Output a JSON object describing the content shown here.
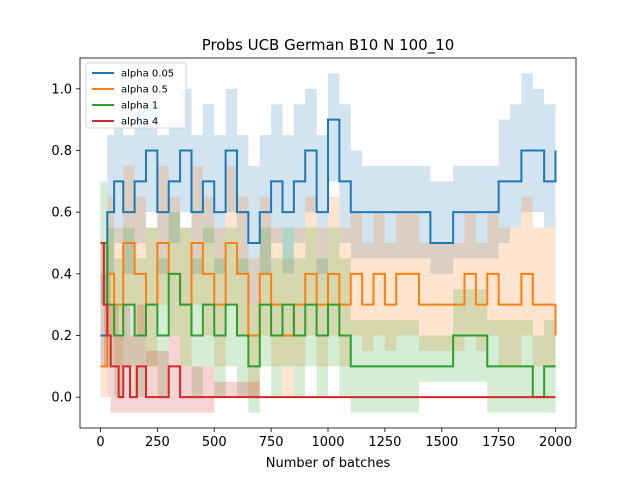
{
  "chart_data": {
    "type": "line",
    "title": "Probs UCB German B10 N 100_10",
    "xlabel": "Number of batches",
    "ylabel": "",
    "xlim": [
      -90,
      2090
    ],
    "ylim": [
      -0.1,
      1.1
    ],
    "x_ticks": [
      0,
      250,
      500,
      750,
      1000,
      1250,
      1500,
      1750,
      2000
    ],
    "y_ticks": [
      0.0,
      0.2,
      0.4,
      0.6,
      0.8,
      1.0
    ],
    "x_tick_labels": [
      "0",
      "250",
      "500",
      "750",
      "1000",
      "1250",
      "1500",
      "1750",
      "2000"
    ],
    "y_tick_labels": [
      "0.0",
      "0.2",
      "0.4",
      "0.6",
      "0.8",
      "1.0"
    ],
    "grid": false,
    "legend_position": "top-left",
    "series": [
      {
        "name": "alpha 0.05",
        "color": "#1f77b4",
        "x": [
          0,
          30,
          60,
          100,
          150,
          200,
          250,
          300,
          350,
          400,
          450,
          500,
          550,
          600,
          650,
          700,
          750,
          800,
          850,
          900,
          950,
          1000,
          1050,
          1100,
          1150,
          1200,
          1250,
          1300,
          1350,
          1400,
          1450,
          1500,
          1550,
          1600,
          1650,
          1700,
          1750,
          1800,
          1850,
          1900,
          1950,
          2000
        ],
        "values": [
          0.2,
          0.6,
          0.7,
          0.6,
          0.7,
          0.8,
          0.6,
          0.7,
          0.8,
          0.6,
          0.7,
          0.6,
          0.8,
          0.6,
          0.5,
          0.6,
          0.7,
          0.6,
          0.7,
          0.8,
          0.6,
          0.9,
          0.7,
          0.6,
          0.6,
          0.6,
          0.6,
          0.6,
          0.6,
          0.6,
          0.5,
          0.5,
          0.6,
          0.6,
          0.6,
          0.6,
          0.7,
          0.7,
          0.8,
          0.8,
          0.7,
          0.8
        ],
        "lower": [
          0.1,
          0.4,
          0.5,
          0.4,
          0.5,
          0.6,
          0.4,
          0.5,
          0.6,
          0.4,
          0.5,
          0.4,
          0.6,
          0.4,
          0.3,
          0.4,
          0.5,
          0.4,
          0.5,
          0.6,
          0.4,
          0.7,
          0.5,
          0.45,
          0.45,
          0.45,
          0.45,
          0.45,
          0.45,
          0.45,
          0.4,
          0.4,
          0.45,
          0.45,
          0.45,
          0.45,
          0.5,
          0.55,
          0.6,
          0.6,
          0.55,
          0.6
        ],
        "upper": [
          0.4,
          0.85,
          0.9,
          0.85,
          0.95,
          1.0,
          0.85,
          0.9,
          1.0,
          0.85,
          0.95,
          0.85,
          1.0,
          0.85,
          0.75,
          0.85,
          0.95,
          0.85,
          0.95,
          1.0,
          0.85,
          1.05,
          0.95,
          0.8,
          0.75,
          0.75,
          0.75,
          0.75,
          0.75,
          0.75,
          0.7,
          0.7,
          0.75,
          0.75,
          0.75,
          0.75,
          0.9,
          0.95,
          1.05,
          1.0,
          0.95,
          1.0
        ]
      },
      {
        "name": "alpha 0.5",
        "color": "#ff7f0e",
        "x": [
          0,
          30,
          60,
          100,
          150,
          200,
          250,
          300,
          350,
          400,
          450,
          500,
          550,
          600,
          650,
          700,
          750,
          800,
          850,
          900,
          950,
          1000,
          1050,
          1100,
          1150,
          1200,
          1250,
          1300,
          1350,
          1400,
          1450,
          1500,
          1550,
          1600,
          1650,
          1700,
          1750,
          1800,
          1850,
          1900,
          1950,
          2000
        ],
        "values": [
          0.1,
          0.4,
          0.3,
          0.5,
          0.4,
          0.3,
          0.5,
          0.4,
          0.3,
          0.5,
          0.4,
          0.3,
          0.5,
          0.4,
          0.2,
          0.4,
          0.3,
          0.2,
          0.3,
          0.4,
          0.3,
          0.4,
          0.3,
          0.4,
          0.3,
          0.4,
          0.3,
          0.4,
          0.4,
          0.3,
          0.3,
          0.3,
          0.3,
          0.4,
          0.3,
          0.4,
          0.3,
          0.3,
          0.4,
          0.3,
          0.3,
          0.2
        ],
        "lower": [
          0.0,
          0.2,
          0.1,
          0.3,
          0.2,
          0.1,
          0.3,
          0.2,
          0.1,
          0.3,
          0.2,
          0.1,
          0.3,
          0.2,
          0.0,
          0.2,
          0.1,
          0.0,
          0.1,
          0.2,
          0.1,
          0.2,
          0.1,
          0.2,
          0.15,
          0.2,
          0.15,
          0.2,
          0.2,
          0.15,
          0.15,
          0.15,
          0.15,
          0.2,
          0.15,
          0.2,
          0.1,
          0.1,
          0.2,
          0.1,
          0.1,
          0.0
        ],
        "upper": [
          0.3,
          0.65,
          0.55,
          0.75,
          0.65,
          0.55,
          0.75,
          0.65,
          0.55,
          0.75,
          0.65,
          0.55,
          0.75,
          0.65,
          0.45,
          0.65,
          0.55,
          0.45,
          0.55,
          0.65,
          0.55,
          0.65,
          0.55,
          0.6,
          0.5,
          0.6,
          0.5,
          0.6,
          0.6,
          0.5,
          0.5,
          0.5,
          0.5,
          0.6,
          0.5,
          0.6,
          0.55,
          0.55,
          0.65,
          0.55,
          0.55,
          0.45
        ]
      },
      {
        "name": "alpha 1",
        "color": "#2ca02c",
        "x": [
          0,
          30,
          60,
          100,
          150,
          200,
          250,
          300,
          350,
          400,
          450,
          500,
          550,
          600,
          650,
          700,
          750,
          800,
          850,
          900,
          950,
          1000,
          1050,
          1100,
          1150,
          1200,
          1250,
          1300,
          1350,
          1400,
          1450,
          1500,
          1550,
          1600,
          1650,
          1700,
          1750,
          1800,
          1850,
          1900,
          1950,
          2000
        ],
        "values": [
          0.5,
          0.3,
          0.2,
          0.3,
          0.2,
          0.3,
          0.2,
          0.4,
          0.3,
          0.2,
          0.3,
          0.2,
          0.3,
          0.2,
          0.1,
          0.3,
          0.2,
          0.3,
          0.2,
          0.3,
          0.2,
          0.3,
          0.2,
          0.1,
          0.1,
          0.1,
          0.1,
          0.1,
          0.1,
          0.1,
          0.1,
          0.1,
          0.2,
          0.2,
          0.2,
          0.1,
          0.1,
          0.1,
          0.1,
          0.0,
          0.1,
          0.1
        ],
        "lower": [
          0.3,
          0.1,
          0.0,
          0.1,
          0.0,
          0.1,
          0.0,
          0.2,
          0.1,
          0.0,
          0.1,
          0.0,
          0.1,
          0.0,
          -0.05,
          0.1,
          0.0,
          0.1,
          0.0,
          0.1,
          0.0,
          0.1,
          0.0,
          -0.05,
          -0.05,
          -0.05,
          -0.05,
          -0.05,
          -0.05,
          0.05,
          0.05,
          0.05,
          0.05,
          0.05,
          0.05,
          -0.05,
          -0.05,
          -0.05,
          -0.05,
          -0.05,
          -0.05,
          -0.05
        ],
        "upper": [
          0.7,
          0.55,
          0.45,
          0.55,
          0.45,
          0.55,
          0.45,
          0.6,
          0.55,
          0.45,
          0.55,
          0.45,
          0.55,
          0.45,
          0.3,
          0.55,
          0.45,
          0.55,
          0.45,
          0.55,
          0.45,
          0.55,
          0.45,
          0.25,
          0.25,
          0.25,
          0.25,
          0.25,
          0.25,
          0.2,
          0.2,
          0.2,
          0.35,
          0.35,
          0.35,
          0.25,
          0.25,
          0.25,
          0.25,
          0.2,
          0.25,
          0.25
        ]
      },
      {
        "name": "alpha 4",
        "color": "#d62728",
        "x": [
          0,
          15,
          30,
          45,
          60,
          80,
          100,
          130,
          160,
          200,
          250,
          300,
          350,
          400,
          500,
          600,
          700,
          800,
          900,
          1000,
          1100,
          1200,
          1300,
          1400,
          1500,
          1600,
          1700,
          1800,
          1900,
          2000
        ],
        "values": [
          0.5,
          0.3,
          0.2,
          0.1,
          0.1,
          0.0,
          0.1,
          0.0,
          0.1,
          0.0,
          0.0,
          0.1,
          0.0,
          0.0,
          0.0,
          0.0,
          0.0,
          0.0,
          0.0,
          0.0,
          0.0,
          0.0,
          0.0,
          0.0,
          0.0,
          0.0,
          0.0,
          0.0,
          0.0,
          0.0
        ],
        "lower": [
          0.3,
          0.1,
          0.0,
          -0.05,
          -0.05,
          -0.05,
          -0.05,
          -0.05,
          -0.05,
          -0.05,
          -0.05,
          -0.05,
          -0.05,
          -0.05,
          0.0,
          0.0,
          0.0,
          0.0,
          0.0,
          0.0,
          0.0,
          0.0,
          0.0,
          0.0,
          0.0,
          0.0,
          0.0,
          0.0,
          0.0,
          0.0
        ],
        "upper": [
          0.5,
          0.5,
          0.4,
          0.3,
          0.3,
          0.2,
          0.3,
          0.2,
          0.3,
          0.15,
          0.15,
          0.2,
          0.1,
          0.1,
          0.05,
          0.05,
          0.0,
          0.0,
          0.0,
          0.0,
          0.0,
          0.0,
          0.0,
          0.0,
          0.0,
          0.0,
          0.0,
          0.0,
          0.0,
          0.0
        ]
      }
    ]
  }
}
